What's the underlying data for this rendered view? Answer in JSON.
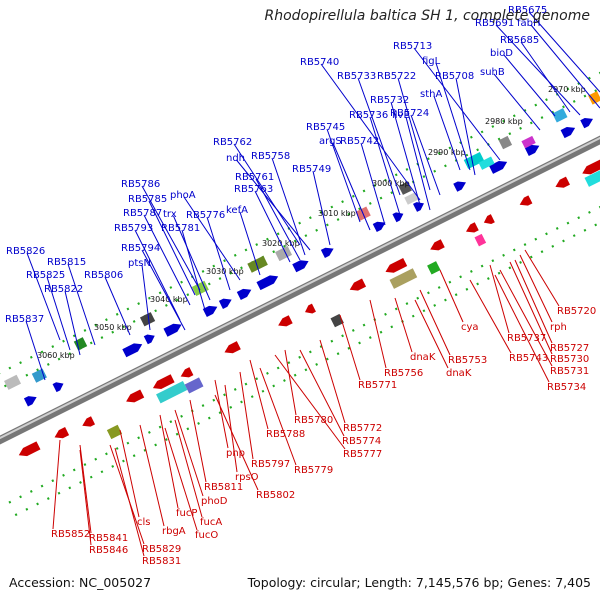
{
  "title": "Rhodopirellula baltica SH 1, complete genome",
  "footer": {
    "accession": "Accession: NC_005027",
    "summary": "Topology: circular; Length: 7,145,576 bp; Genes: 7,405"
  },
  "colors": {
    "top_strand": "#0000cc",
    "bottom_strand": "#cc0000"
  },
  "ticks": [
    "2970 kbp",
    "2980 kbp",
    "2990 kbp",
    "3000 kbp",
    "3010 kbp",
    "3020 kbp",
    "3030 kbp",
    "3040 kbp",
    "3050 kbp",
    "3060 kbp"
  ],
  "top_labels": [
    "RB5675",
    "RB5691",
    "fabH",
    "RB5685",
    "bioD",
    "RB5713",
    "suhB",
    "RB5740",
    "figL",
    "RB5708",
    "RB5733",
    "RB5722",
    "sthA",
    "RB5732",
    "ilvE",
    "RB5736",
    "RB5724",
    "RB5745",
    "argS",
    "RB5742",
    "RB5762",
    "ndh",
    "RB5758",
    "RB5761",
    "RB5763",
    "RB5749",
    "RB5786",
    "phoA",
    "RB5785",
    "kefA",
    "trx",
    "RB5787",
    "RB5776",
    "RB5793",
    "RB5781",
    "RB5794",
    "RB5826",
    "ptsN",
    "RB5825",
    "RB5815",
    "RB5806",
    "RB5822",
    "RB5837"
  ],
  "bottom_labels": [
    "RB5720",
    "rph",
    "RB5727",
    "RB5737",
    "RB5730",
    "cya",
    "RB5731",
    "RB5734",
    "RB5743",
    "RB5753",
    "dnaK",
    "RB5756",
    "dnaK",
    "RB5771",
    "RB5772",
    "RB5780",
    "RB5774",
    "RB5788",
    "RB5777",
    "pnp",
    "RB5797",
    "RB5779",
    "rpsO",
    "RB5811",
    "RB5802",
    "phoD",
    "fucP",
    "fucA",
    "cls",
    "rbgA",
    "RB5852",
    "fucO",
    "RB5841",
    "RB5846",
    "RB5829",
    "RB5831"
  ]
}
